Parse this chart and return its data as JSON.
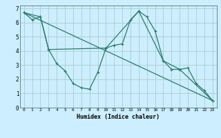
{
  "title": "",
  "xlabel": "Humidex (Indice chaleur)",
  "bg_color": "#cceeff",
  "grid_color": "#aacccc",
  "line_color": "#2a7a6a",
  "xlim": [
    -0.5,
    23.5
  ],
  "ylim": [
    0,
    7.2
  ],
  "yticks": [
    0,
    1,
    2,
    3,
    4,
    5,
    6,
    7
  ],
  "xticks": [
    0,
    1,
    2,
    3,
    4,
    5,
    6,
    7,
    8,
    9,
    10,
    11,
    12,
    13,
    14,
    15,
    16,
    17,
    18,
    19,
    20,
    21,
    22,
    23
  ],
  "series1_x": [
    0,
    1,
    2,
    3,
    4,
    5,
    6,
    7,
    8,
    9,
    10,
    11,
    12,
    13,
    14,
    15,
    16,
    17,
    18,
    19,
    20,
    21,
    22,
    23
  ],
  "series1_y": [
    6.7,
    6.2,
    6.4,
    4.1,
    3.1,
    2.6,
    1.7,
    1.4,
    1.3,
    2.5,
    4.2,
    4.4,
    4.5,
    6.2,
    6.8,
    6.4,
    5.4,
    3.3,
    2.7,
    2.7,
    2.8,
    1.7,
    1.2,
    0.5
  ],
  "series2_x": [
    0,
    2,
    3,
    10,
    14,
    17,
    19,
    23
  ],
  "series2_y": [
    6.7,
    6.4,
    4.1,
    4.2,
    6.8,
    3.3,
    2.7,
    0.5
  ],
  "series3_x": [
    0,
    23
  ],
  "series3_y": [
    6.7,
    0.5
  ]
}
